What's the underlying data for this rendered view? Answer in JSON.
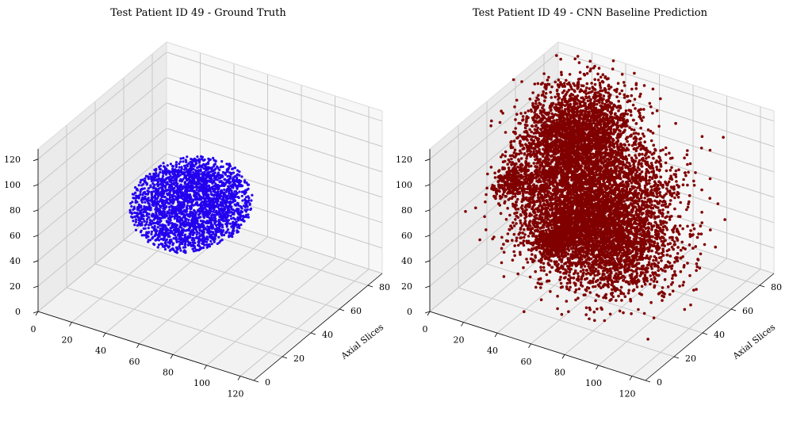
{
  "chart_data": [
    {
      "type": "scatter",
      "title": "Test Patient ID 49 - Ground Truth",
      "xlabel": "",
      "ylabel": "Axial Slices",
      "zlabel": "",
      "x_ticks": [
        "0",
        "20",
        "40",
        "60",
        "80",
        "100",
        "120"
      ],
      "y_ticks": [
        "0",
        "20",
        "40",
        "60",
        "80"
      ],
      "z_ticks": [
        "0",
        "20",
        "40",
        "60",
        "80",
        "100",
        "120"
      ],
      "xlim": [
        0,
        128
      ],
      "ylim": [
        0,
        90
      ],
      "zlim": [
        0,
        128
      ],
      "grid": true,
      "series": [
        {
          "color": "#2200ee",
          "shape": "compact blob",
          "center": [
            40,
            60,
            45
          ],
          "radius": [
            30,
            25,
            28
          ],
          "n_points": 2500
        }
      ]
    },
    {
      "type": "scatter",
      "title": "Test Patient ID 49 - CNN Baseline Prediction",
      "xlabel": "",
      "ylabel": "Axial Slices",
      "zlabel": "",
      "x_ticks": [
        "0",
        "20",
        "40",
        "60",
        "80",
        "100",
        "120"
      ],
      "y_ticks": [
        "0",
        "20",
        "40",
        "60",
        "80"
      ],
      "z_ticks": [
        "0",
        "20",
        "40",
        "60",
        "80",
        "100",
        "120"
      ],
      "xlim": [
        0,
        128
      ],
      "ylim": [
        0,
        90
      ],
      "zlim": [
        0,
        128
      ],
      "grid": true,
      "series": [
        {
          "color": "#800000",
          "shape": "large diffuse mass",
          "n_points": 9000
        }
      ]
    }
  ]
}
